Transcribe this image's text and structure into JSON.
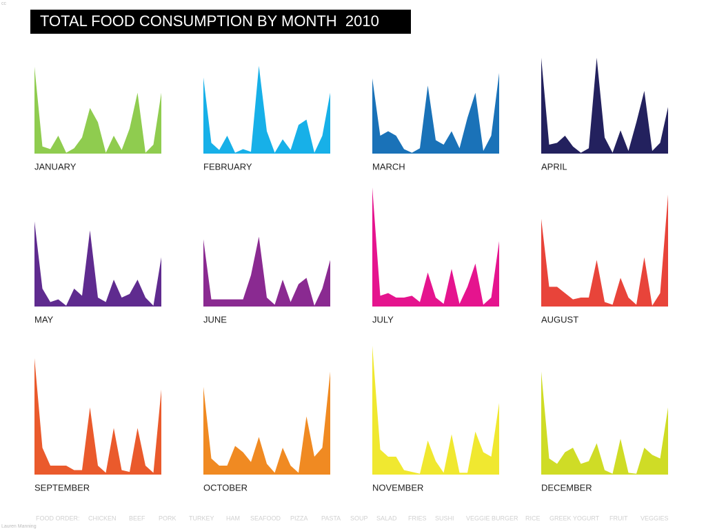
{
  "title": "TOTAL FOOD CONSUMPTION BY MONTH  2010",
  "license": "cc",
  "credit": "Lauren Manning",
  "food_order": {
    "label": "FOOD ORDER:",
    "items": [
      "CHICKEN",
      "BEEF",
      "PORK",
      "TURKEY",
      "HAM",
      "SEAFOOD",
      "PIZZA",
      "PASTA",
      "SOUP",
      "SALAD",
      "FRIES",
      "SUSHI",
      "VEGGIE BURGER",
      "RICE",
      "GREEK YOGURT",
      "FRUIT",
      "VEGGIES"
    ]
  },
  "chart_data": [
    {
      "type": "area",
      "title": "JANUARY",
      "color": "#8fcc4f",
      "ylim": [
        0,
        150
      ],
      "values": [
        97,
        8,
        5,
        20,
        1,
        6,
        18,
        51,
        35,
        1,
        20,
        4,
        28,
        68,
        1,
        10,
        68
      ]
    },
    {
      "type": "area",
      "title": "FEBRUARY",
      "color": "#17b0e8",
      "ylim": [
        0,
        150
      ],
      "values": [
        85,
        12,
        4,
        20,
        1,
        5,
        2,
        98,
        25,
        1,
        16,
        4,
        32,
        38,
        1,
        20,
        68
      ]
    },
    {
      "type": "area",
      "title": "MARCH",
      "color": "#1a72b8",
      "ylim": [
        0,
        150
      ],
      "values": [
        84,
        20,
        25,
        20,
        5,
        1,
        6,
        76,
        15,
        10,
        25,
        6,
        40,
        68,
        3,
        20,
        90
      ]
    },
    {
      "type": "area",
      "title": "APRIL",
      "color": "#23215e",
      "ylim": [
        0,
        150
      ],
      "values": [
        107,
        10,
        12,
        20,
        8,
        1,
        6,
        107,
        18,
        1,
        26,
        3,
        35,
        70,
        3,
        12,
        52
      ]
    },
    {
      "type": "area",
      "title": "MAY",
      "color": "#5f2b8f",
      "ylim": [
        0,
        150
      ],
      "values": [
        95,
        20,
        5,
        8,
        1,
        20,
        12,
        85,
        10,
        5,
        30,
        10,
        14,
        30,
        10,
        1,
        55
      ]
    },
    {
      "type": "area",
      "title": "JUNE",
      "color": "#8a2a91",
      "ylim": [
        0,
        150
      ],
      "values": [
        75,
        8,
        8,
        8,
        8,
        8,
        35,
        78,
        10,
        2,
        30,
        5,
        25,
        32,
        1,
        20,
        52
      ]
    },
    {
      "type": "area",
      "title": "JULY",
      "color": "#e5148e",
      "ylim": [
        0,
        150
      ],
      "values": [
        133,
        12,
        15,
        10,
        10,
        12,
        5,
        38,
        10,
        3,
        42,
        3,
        22,
        48,
        2,
        10,
        73
      ]
    },
    {
      "type": "area",
      "title": "AUGUST",
      "color": "#e8443a",
      "ylim": [
        0,
        150
      ],
      "values": [
        98,
        22,
        22,
        15,
        8,
        10,
        10,
        52,
        5,
        2,
        32,
        10,
        2,
        55,
        1,
        15,
        125
      ]
    },
    {
      "type": "area",
      "title": "SEPTEMBER",
      "color": "#ea5a2c",
      "ylim": [
        0,
        150
      ],
      "values": [
        130,
        30,
        10,
        10,
        10,
        5,
        5,
        75,
        10,
        2,
        52,
        5,
        3,
        52,
        10,
        2,
        95
      ]
    },
    {
      "type": "area",
      "title": "OCTOBER",
      "color": "#f08a22",
      "ylim": [
        0,
        150
      ],
      "values": [
        98,
        18,
        10,
        10,
        32,
        25,
        14,
        42,
        12,
        2,
        30,
        10,
        2,
        65,
        20,
        30,
        115
      ]
    },
    {
      "type": "area",
      "title": "NOVEMBER",
      "color": "#f0e830",
      "ylim": [
        0,
        150
      ],
      "values": [
        144,
        28,
        20,
        20,
        5,
        3,
        1,
        38,
        15,
        2,
        45,
        2,
        2,
        48,
        25,
        20,
        80
      ]
    },
    {
      "type": "area",
      "title": "DECEMBER",
      "color": "#cfdc26",
      "ylim": [
        0,
        150
      ],
      "values": [
        115,
        18,
        12,
        25,
        30,
        12,
        15,
        35,
        5,
        1,
        40,
        2,
        1,
        30,
        22,
        18,
        75
      ]
    }
  ]
}
